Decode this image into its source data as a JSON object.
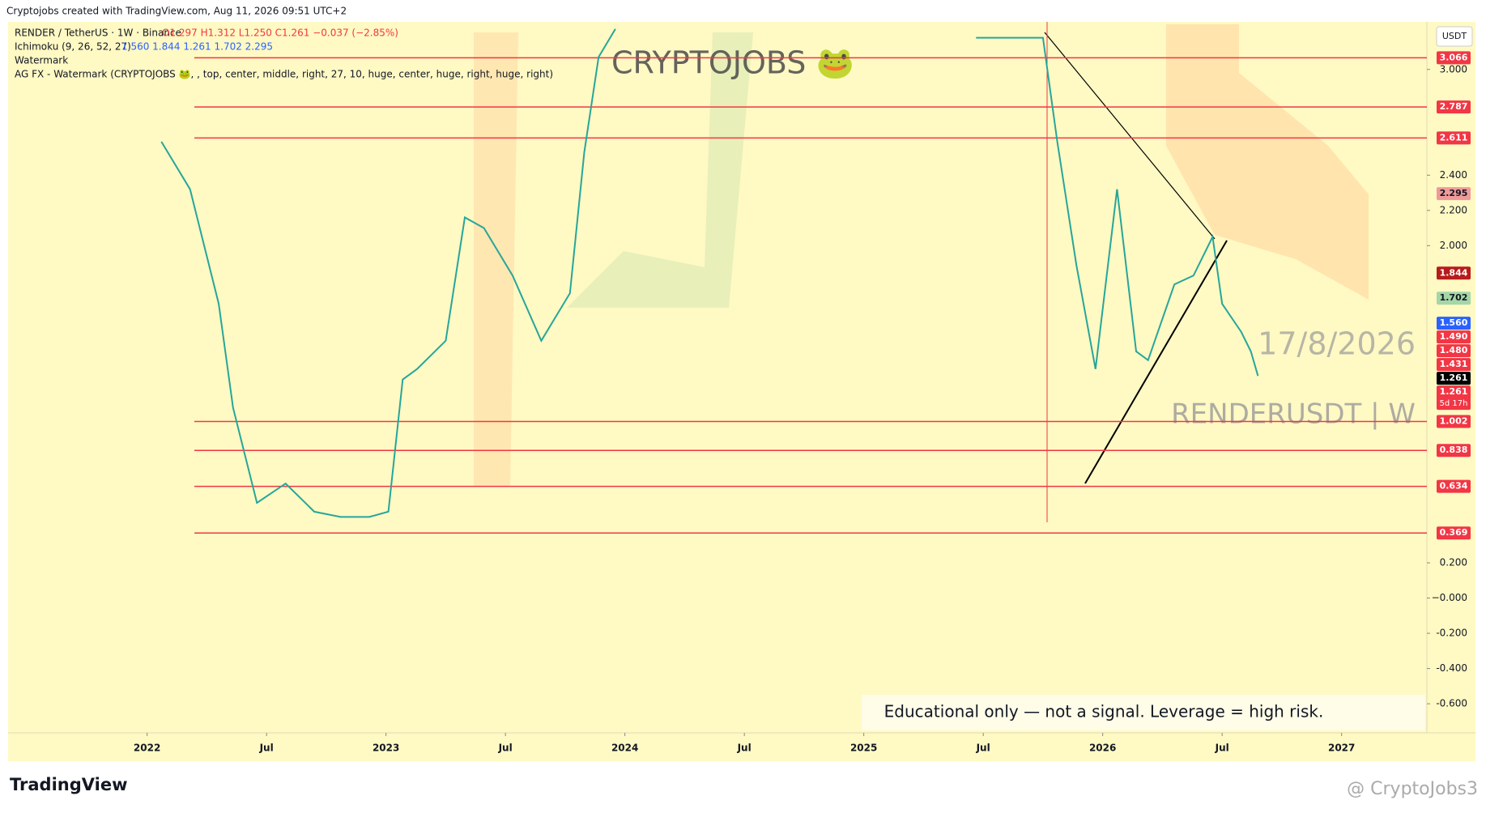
{
  "chart_data": {
    "type": "line",
    "credit": "Cryptojobs created with TradingView.com, Aug 11, 2026 09:51 UTC+2",
    "legend_lines": [
      "RENDER / TetherUS · 1W · Binance",
      "O1.297 H1.312 L1.250 C1.261 −0.037 (−2.85%)",
      "Ichimoku (9, 26, 52, 27)",
      "1.560 1.844 1.261 1.702 2.295",
      "Watermark",
      "AG FX - Watermark (CRYPTOJOBS 🐸, , top, center, middle, right, 27, 10, huge, center, huge, right, huge, right)"
    ],
    "watermark": "CRYPTOJOBS 🐸",
    "date_note": "17/8/2026",
    "symbol_note": "RENDERUSDT | W",
    "disclaimer": "Educational only — not a signal. Leverage  = high risk.",
    "currency": "USDT",
    "brand": "TradingView",
    "author": "@ CryptoJobs3",
    "countdown": "5d 17h",
    "x": [
      2022.06,
      2022.18,
      2022.3,
      2022.36,
      2022.46,
      2022.58,
      2022.7,
      2022.81,
      2022.93,
      2023.01,
      2023.07,
      2023.13,
      2023.25,
      2023.33,
      2023.41,
      2023.53,
      2023.65,
      2023.77,
      2023.83,
      2023.89,
      2023.96,
      2024.5,
      2025.47,
      2025.75,
      2025.81,
      2025.89,
      2025.97,
      2026.06,
      2026.14,
      2026.19,
      2026.3,
      2026.38,
      2026.46,
      2026.5,
      2026.58,
      2026.62,
      2026.65
    ],
    "series": [
      {
        "name": "RENDER / TetherUS",
        "color": "#26a69a",
        "values": [
          2.59,
          2.32,
          1.67,
          1.08,
          0.54,
          0.65,
          0.49,
          0.46,
          0.46,
          0.49,
          1.24,
          1.3,
          1.46,
          2.16,
          2.1,
          1.83,
          1.46,
          1.73,
          2.53,
          3.07,
          3.23,
          null,
          3.18,
          3.18,
          2.59,
          1.89,
          1.3,
          2.32,
          1.4,
          1.35,
          1.78,
          1.83,
          2.05,
          1.67,
          1.51,
          1.4,
          1.261
        ]
      }
    ],
    "levels": {
      "values": [
        3.066,
        2.787,
        2.611,
        1.002,
        0.838,
        0.634,
        0.369
      ],
      "color": "#f23645"
    },
    "tags": {
      "values": [
        2.295,
        1.844,
        1.702,
        {
          "value": 1.56,
          "label": "1.560"
        },
        {
          "value": 1.49,
          "label": "1.490"
        },
        {
          "value": 1.48,
          "label": "1.480"
        },
        1.431,
        1.261,
        1.261
      ],
      "colors": [
        "#ef9a9a",
        "#b71c1c",
        "#a5d6a7",
        "#2962ff",
        "#f23645",
        "#f23645",
        "#f23645",
        "#000000",
        "#f23645"
      ]
    },
    "xlim": [
      2021.425,
      2027.357
    ],
    "xticks": [
      2022,
      {
        "value": 2022.5,
        "label": "Jul"
      },
      2023,
      {
        "value": 2023.5,
        "label": "Jul"
      },
      2024,
      {
        "value": 2024.5,
        "label": "Jul"
      },
      2025,
      {
        "value": 2025.5,
        "label": "Jul"
      },
      2026,
      {
        "value": 2026.5,
        "label": "Jul"
      },
      2027
    ],
    "ylim": [
      -0.765,
      3.27
    ],
    "yticks": [
      {
        "value": 3,
        "label": "3.000"
      },
      {
        "value": 2.4,
        "label": "2.400"
      },
      {
        "value": 2.2,
        "label": "2.200"
      },
      {
        "value": 2,
        "label": "2.000"
      },
      {
        "value": 0.2,
        "label": "0.200"
      },
      {
        "value": 0,
        "label": "−0.000"
      },
      {
        "value": -0.2,
        "label": "-0.200"
      },
      {
        "value": -0.4,
        "label": "-0.400"
      },
      {
        "value": -0.6,
        "label": "-0.600"
      }
    ]
  }
}
